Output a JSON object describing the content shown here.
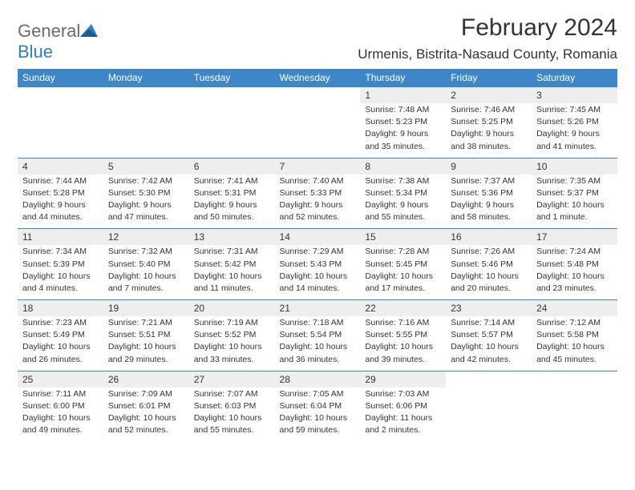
{
  "brand": {
    "name_gray": "General",
    "name_blue": "Blue"
  },
  "title": "February 2024",
  "location": "Urmenis, Bistrita-Nasaud County, Romania",
  "colors": {
    "header_bg": "#3d87c9",
    "header_text": "#ffffff",
    "daynum_bg": "#eeeeee",
    "cell_border": "#3d87c9",
    "text": "#333333",
    "logo_gray": "#6b6b6b",
    "logo_blue": "#2e7fbf"
  },
  "typography": {
    "title_fontsize": 30,
    "location_fontsize": 17,
    "dayhead_fontsize": 12,
    "cell_fontsize": 10.5
  },
  "day_names": [
    "Sunday",
    "Monday",
    "Tuesday",
    "Wednesday",
    "Thursday",
    "Friday",
    "Saturday"
  ],
  "weeks": [
    [
      null,
      null,
      null,
      null,
      {
        "n": "1",
        "sr": "Sunrise: 7:48 AM",
        "ss": "Sunset: 5:23 PM",
        "d1": "Daylight: 9 hours",
        "d2": "and 35 minutes."
      },
      {
        "n": "2",
        "sr": "Sunrise: 7:46 AM",
        "ss": "Sunset: 5:25 PM",
        "d1": "Daylight: 9 hours",
        "d2": "and 38 minutes."
      },
      {
        "n": "3",
        "sr": "Sunrise: 7:45 AM",
        "ss": "Sunset: 5:26 PM",
        "d1": "Daylight: 9 hours",
        "d2": "and 41 minutes."
      }
    ],
    [
      {
        "n": "4",
        "sr": "Sunrise: 7:44 AM",
        "ss": "Sunset: 5:28 PM",
        "d1": "Daylight: 9 hours",
        "d2": "and 44 minutes."
      },
      {
        "n": "5",
        "sr": "Sunrise: 7:42 AM",
        "ss": "Sunset: 5:30 PM",
        "d1": "Daylight: 9 hours",
        "d2": "and 47 minutes."
      },
      {
        "n": "6",
        "sr": "Sunrise: 7:41 AM",
        "ss": "Sunset: 5:31 PM",
        "d1": "Daylight: 9 hours",
        "d2": "and 50 minutes."
      },
      {
        "n": "7",
        "sr": "Sunrise: 7:40 AM",
        "ss": "Sunset: 5:33 PM",
        "d1": "Daylight: 9 hours",
        "d2": "and 52 minutes."
      },
      {
        "n": "8",
        "sr": "Sunrise: 7:38 AM",
        "ss": "Sunset: 5:34 PM",
        "d1": "Daylight: 9 hours",
        "d2": "and 55 minutes."
      },
      {
        "n": "9",
        "sr": "Sunrise: 7:37 AM",
        "ss": "Sunset: 5:36 PM",
        "d1": "Daylight: 9 hours",
        "d2": "and 58 minutes."
      },
      {
        "n": "10",
        "sr": "Sunrise: 7:35 AM",
        "ss": "Sunset: 5:37 PM",
        "d1": "Daylight: 10 hours",
        "d2": "and 1 minute."
      }
    ],
    [
      {
        "n": "11",
        "sr": "Sunrise: 7:34 AM",
        "ss": "Sunset: 5:39 PM",
        "d1": "Daylight: 10 hours",
        "d2": "and 4 minutes."
      },
      {
        "n": "12",
        "sr": "Sunrise: 7:32 AM",
        "ss": "Sunset: 5:40 PM",
        "d1": "Daylight: 10 hours",
        "d2": "and 7 minutes."
      },
      {
        "n": "13",
        "sr": "Sunrise: 7:31 AM",
        "ss": "Sunset: 5:42 PM",
        "d1": "Daylight: 10 hours",
        "d2": "and 11 minutes."
      },
      {
        "n": "14",
        "sr": "Sunrise: 7:29 AM",
        "ss": "Sunset: 5:43 PM",
        "d1": "Daylight: 10 hours",
        "d2": "and 14 minutes."
      },
      {
        "n": "15",
        "sr": "Sunrise: 7:28 AM",
        "ss": "Sunset: 5:45 PM",
        "d1": "Daylight: 10 hours",
        "d2": "and 17 minutes."
      },
      {
        "n": "16",
        "sr": "Sunrise: 7:26 AM",
        "ss": "Sunset: 5:46 PM",
        "d1": "Daylight: 10 hours",
        "d2": "and 20 minutes."
      },
      {
        "n": "17",
        "sr": "Sunrise: 7:24 AM",
        "ss": "Sunset: 5:48 PM",
        "d1": "Daylight: 10 hours",
        "d2": "and 23 minutes."
      }
    ],
    [
      {
        "n": "18",
        "sr": "Sunrise: 7:23 AM",
        "ss": "Sunset: 5:49 PM",
        "d1": "Daylight: 10 hours",
        "d2": "and 26 minutes."
      },
      {
        "n": "19",
        "sr": "Sunrise: 7:21 AM",
        "ss": "Sunset: 5:51 PM",
        "d1": "Daylight: 10 hours",
        "d2": "and 29 minutes."
      },
      {
        "n": "20",
        "sr": "Sunrise: 7:19 AM",
        "ss": "Sunset: 5:52 PM",
        "d1": "Daylight: 10 hours",
        "d2": "and 33 minutes."
      },
      {
        "n": "21",
        "sr": "Sunrise: 7:18 AM",
        "ss": "Sunset: 5:54 PM",
        "d1": "Daylight: 10 hours",
        "d2": "and 36 minutes."
      },
      {
        "n": "22",
        "sr": "Sunrise: 7:16 AM",
        "ss": "Sunset: 5:55 PM",
        "d1": "Daylight: 10 hours",
        "d2": "and 39 minutes."
      },
      {
        "n": "23",
        "sr": "Sunrise: 7:14 AM",
        "ss": "Sunset: 5:57 PM",
        "d1": "Daylight: 10 hours",
        "d2": "and 42 minutes."
      },
      {
        "n": "24",
        "sr": "Sunrise: 7:12 AM",
        "ss": "Sunset: 5:58 PM",
        "d1": "Daylight: 10 hours",
        "d2": "and 45 minutes."
      }
    ],
    [
      {
        "n": "25",
        "sr": "Sunrise: 7:11 AM",
        "ss": "Sunset: 6:00 PM",
        "d1": "Daylight: 10 hours",
        "d2": "and 49 minutes."
      },
      {
        "n": "26",
        "sr": "Sunrise: 7:09 AM",
        "ss": "Sunset: 6:01 PM",
        "d1": "Daylight: 10 hours",
        "d2": "and 52 minutes."
      },
      {
        "n": "27",
        "sr": "Sunrise: 7:07 AM",
        "ss": "Sunset: 6:03 PM",
        "d1": "Daylight: 10 hours",
        "d2": "and 55 minutes."
      },
      {
        "n": "28",
        "sr": "Sunrise: 7:05 AM",
        "ss": "Sunset: 6:04 PM",
        "d1": "Daylight: 10 hours",
        "d2": "and 59 minutes."
      },
      {
        "n": "29",
        "sr": "Sunrise: 7:03 AM",
        "ss": "Sunset: 6:06 PM",
        "d1": "Daylight: 11 hours",
        "d2": "and 2 minutes."
      },
      null,
      null
    ]
  ]
}
